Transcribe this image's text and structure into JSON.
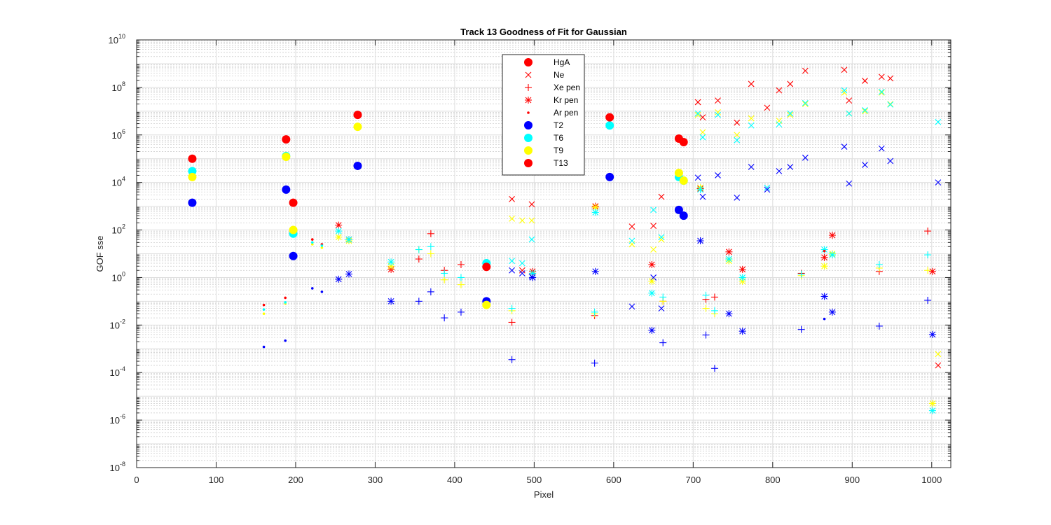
{
  "chart_data": {
    "type": "scatter",
    "title": "Track 13  Goodness of Fit for Gaussian",
    "xlabel": "Pixel",
    "ylabel": "GOF sse",
    "xlim": [
      0,
      1024
    ],
    "ylim": [
      1e-08,
      10000000000.0
    ],
    "yscale": "log",
    "grid": true,
    "minor_grid": true,
    "legend_position": "top-center",
    "x_ticks": [
      "0",
      "100",
      "200",
      "300",
      "400",
      "500",
      "600",
      "700",
      "800",
      "900",
      "1000"
    ],
    "y_ticks": [
      {
        "base": "10",
        "exp": "10"
      },
      {
        "base": "10",
        "exp": "8"
      },
      {
        "base": "10",
        "exp": "6"
      },
      {
        "base": "10",
        "exp": "4"
      },
      {
        "base": "10",
        "exp": "2"
      },
      {
        "base": "10",
        "exp": "0"
      },
      {
        "base": "10",
        "exp": "-2"
      },
      {
        "base": "10",
        "exp": "-4"
      },
      {
        "base": "10",
        "exp": "-6"
      },
      {
        "base": "10",
        "exp": "-8"
      }
    ],
    "colors": {
      "T2": "#0000ff",
      "T6": "#00ffff",
      "T9": "#ffff00",
      "T13": "#ff0000",
      "legend_green": "#00ff00"
    },
    "legend": [
      {
        "label": "HgA",
        "marker": "dot",
        "color": "#ff0000"
      },
      {
        "label": "Ne",
        "marker": "x",
        "color": "#ff0000"
      },
      {
        "label": "Xe pen",
        "marker": "plus",
        "color": "#ff0000"
      },
      {
        "label": "Kr pen",
        "marker": "asterisk",
        "color": "#ff0000"
      },
      {
        "label": "Ar pen",
        "marker": "point",
        "color": "#ff0000"
      },
      {
        "label": "T2",
        "marker": "dot",
        "color": "#0000ff"
      },
      {
        "label": "T6",
        "marker": "dot",
        "color": "#00ffff"
      },
      {
        "label": "T9",
        "marker": "dot",
        "color": "#ffff00"
      },
      {
        "label": "T13",
        "marker": "dot",
        "color": "#ff0000"
      }
    ],
    "series": [
      {
        "name": "HgA",
        "track": "T2",
        "marker": "dot",
        "x": [
          70,
          188,
          197,
          278,
          440,
          595,
          682,
          688
        ],
        "y": [
          1400,
          5000,
          8,
          50000,
          0.1,
          17000,
          700,
          400
        ]
      },
      {
        "name": "HgA",
        "track": "T6",
        "marker": "dot",
        "x": [
          70,
          188,
          197,
          440,
          595,
          682,
          688
        ],
        "y": [
          30000,
          130000,
          70,
          4,
          2500000,
          17000,
          12000
        ]
      },
      {
        "name": "HgA",
        "track": "T9",
        "marker": "dot",
        "x": [
          70,
          188,
          197,
          278,
          440,
          682,
          688
        ],
        "y": [
          17000,
          120000,
          100,
          2200000,
          0.07,
          25000,
          12000
        ]
      },
      {
        "name": "HgA",
        "track": "T13",
        "marker": "dot",
        "x": [
          70,
          188,
          197,
          278,
          440,
          595,
          682,
          688
        ],
        "y": [
          100000,
          650000,
          1400,
          7000000,
          2.8,
          5500000,
          700000,
          500000
        ]
      },
      {
        "name": "Ne",
        "track": "T13",
        "marker": "x",
        "x": [
          472,
          485,
          497,
          623,
          650,
          660,
          706,
          712,
          731,
          755,
          773,
          793,
          808,
          822,
          841,
          890,
          896,
          916,
          937,
          948,
          1008
        ],
        "y": [
          2000,
          2,
          1200,
          140,
          150,
          2500,
          24000000,
          5500000,
          28000000,
          3300000,
          140000000,
          14000000,
          75000000,
          140000000,
          500000000,
          550000000,
          28000000,
          190000000,
          280000000,
          240000000,
          0.0002
        ]
      },
      {
        "name": "Ne",
        "track": "T9",
        "marker": "x",
        "x": [
          472,
          485,
          497,
          623,
          650,
          660,
          706,
          712,
          731,
          755,
          773,
          808,
          822,
          841,
          890,
          896,
          916,
          937,
          948,
          1008
        ],
        "y": [
          300,
          250,
          250,
          25,
          15,
          40,
          7000000,
          1300000,
          9000000,
          1000000,
          5000000,
          4000000,
          7000000,
          20000000,
          60000000,
          8000000,
          10000000,
          60000000,
          20000000,
          0.0006
        ]
      },
      {
        "name": "Ne",
        "track": "T6",
        "marker": "x",
        "x": [
          472,
          485,
          497,
          623,
          650,
          660,
          706,
          712,
          731,
          755,
          773,
          793,
          808,
          822,
          841,
          890,
          896,
          916,
          937,
          948,
          1008
        ],
        "y": [
          5,
          4,
          40,
          35,
          700,
          50,
          8000000,
          800000,
          7000000,
          600000,
          2500000,
          6000,
          2800000,
          8000000,
          22000000,
          75000000,
          8000000,
          11000000,
          65000000,
          19000000,
          3500000
        ]
      },
      {
        "name": "Ne",
        "track": "T2",
        "marker": "x",
        "x": [
          472,
          485,
          497,
          623,
          650,
          660,
          706,
          712,
          731,
          755,
          773,
          793,
          808,
          822,
          841,
          890,
          896,
          916,
          937,
          948,
          1008
        ],
        "y": [
          2,
          1.5,
          1.1,
          0.06,
          1,
          0.05,
          16000,
          2500,
          20000,
          2300,
          45000,
          5000,
          30000,
          45000,
          110000,
          320000,
          9000,
          55000,
          270000,
          80000,
          10000
        ]
      },
      {
        "name": "Xe pen",
        "track": "T13",
        "marker": "plus",
        "x": [
          355,
          370,
          387,
          408,
          472,
          576,
          662,
          716,
          727,
          836,
          934,
          995
        ],
        "y": [
          6,
          70,
          2,
          3.5,
          0.013,
          0.025,
          0.1,
          0.12,
          0.15,
          1.5,
          1.8,
          90
        ]
      },
      {
        "name": "Xe pen",
        "track": "T9",
        "marker": "plus",
        "x": [
          355,
          370,
          387,
          408,
          472,
          576,
          662,
          716,
          727,
          836,
          934,
          995
        ],
        "y": [
          15,
          10,
          0.8,
          0.5,
          0.04,
          0.03,
          0.1,
          0.05,
          0.03,
          1.2,
          2.5,
          2
        ]
      },
      {
        "name": "Xe pen",
        "track": "T6",
        "marker": "plus",
        "x": [
          355,
          370,
          387,
          408,
          472,
          576,
          662,
          716,
          727,
          836,
          934,
          995
        ],
        "y": [
          15,
          20,
          1.5,
          1,
          0.05,
          0.035,
          0.15,
          0.18,
          0.04,
          1.4,
          3.5,
          9
        ]
      },
      {
        "name": "Xe pen",
        "track": "T2",
        "marker": "plus",
        "x": [
          355,
          370,
          387,
          408,
          472,
          576,
          662,
          716,
          727,
          836,
          934,
          995
        ],
        "y": [
          0.1,
          0.25,
          0.02,
          0.035,
          0.00035,
          0.00025,
          0.0018,
          0.0038,
          0.00015,
          0.0065,
          0.009,
          0.11
        ]
      },
      {
        "name": "Kr pen",
        "track": "T13",
        "marker": "asterisk",
        "x": [
          254,
          267,
          320,
          498,
          577,
          648,
          709,
          745,
          762,
          865,
          875,
          1001
        ],
        "y": [
          160,
          40,
          2.2,
          1.8,
          1000,
          3.5,
          5500,
          12,
          2.2,
          7,
          60,
          1.8
        ]
      },
      {
        "name": "Kr pen",
        "track": "T9",
        "marker": "asterisk",
        "x": [
          254,
          267,
          320,
          498,
          577,
          648,
          709,
          745,
          762,
          865,
          875,
          1001
        ],
        "y": [
          50,
          35,
          3,
          1.5,
          900,
          0.7,
          6000,
          5,
          0.7,
          3,
          10,
          5e-06
        ]
      },
      {
        "name": "Kr pen",
        "track": "T6",
        "marker": "asterisk",
        "x": [
          254,
          267,
          320,
          498,
          577,
          648,
          709,
          745,
          762,
          865,
          875,
          1001
        ],
        "y": [
          90,
          40,
          4.5,
          1.5,
          550,
          0.22,
          5000,
          6,
          1,
          15,
          9,
          2.5e-06
        ]
      },
      {
        "name": "Kr pen",
        "track": "T2",
        "marker": "asterisk",
        "x": [
          254,
          267,
          320,
          498,
          577,
          648,
          709,
          745,
          762,
          865,
          875,
          1001
        ],
        "y": [
          0.85,
          1.4,
          0.1,
          1,
          1.8,
          0.006,
          35,
          0.03,
          0.0055,
          0.16,
          0.035,
          0.004
        ]
      },
      {
        "name": "Ar pen",
        "track": "T13",
        "marker": "point",
        "x": [
          160,
          187,
          221,
          233,
          865
        ],
        "y": [
          0.07,
          0.14,
          40,
          25,
          13
        ]
      },
      {
        "name": "Ar pen",
        "track": "T9",
        "marker": "point",
        "x": [
          160,
          187,
          221,
          233
        ],
        "y": [
          0.03,
          0.08,
          25,
          18
        ]
      },
      {
        "name": "Ar pen",
        "track": "T6",
        "marker": "point",
        "x": [
          160,
          187,
          221,
          233
        ],
        "y": [
          0.045,
          0.09,
          30,
          22
        ]
      },
      {
        "name": "Ar pen",
        "track": "T2",
        "marker": "point",
        "x": [
          160,
          187,
          221,
          233,
          865
        ],
        "y": [
          0.0012,
          0.0022,
          0.35,
          0.25,
          0.018
        ]
      }
    ]
  }
}
